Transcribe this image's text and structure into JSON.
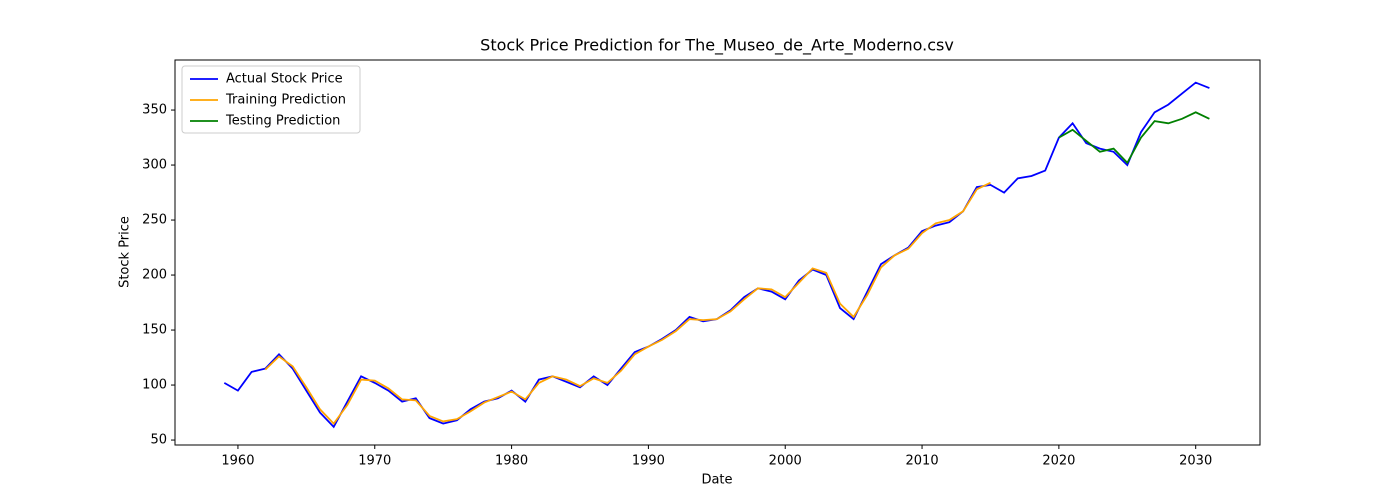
{
  "chart_data": {
    "type": "line",
    "title": "Stock Price Prediction for The_Museo_de_Arte_Moderno.csv",
    "x_label": "Date",
    "y_label": "Stock Price",
    "x": [
      1959,
      1960,
      1961,
      1962,
      1963,
      1964,
      1965,
      1966,
      1967,
      1968,
      1969,
      1970,
      1971,
      1972,
      1973,
      1974,
      1975,
      1976,
      1977,
      1978,
      1979,
      1980,
      1981,
      1982,
      1983,
      1984,
      1985,
      1986,
      1987,
      1988,
      1989,
      1990,
      1991,
      1992,
      1993,
      1994,
      1995,
      1996,
      1997,
      1998,
      1999,
      2000,
      2001,
      2002,
      2003,
      2004,
      2005,
      2006,
      2007,
      2008,
      2009,
      2010,
      2011,
      2012,
      2013,
      2014,
      2015,
      2016,
      2017,
      2018,
      2019,
      2020,
      2021,
      2022,
      2023,
      2024,
      2025,
      2026,
      2027,
      2028,
      2029,
      2030,
      2031
    ],
    "series": [
      {
        "name": "Actual Stock Price",
        "color": "#0000ff",
        "values": [
          102,
          95,
          112,
          115,
          128,
          115,
          95,
          75,
          62,
          85,
          108,
          102,
          95,
          85,
          88,
          70,
          65,
          68,
          78,
          85,
          88,
          95,
          85,
          105,
          108,
          103,
          98,
          108,
          100,
          115,
          130,
          135,
          142,
          150,
          162,
          158,
          160,
          168,
          180,
          188,
          185,
          178,
          195,
          205,
          200,
          170,
          160,
          185,
          210,
          218,
          225,
          240,
          245,
          248,
          258,
          280,
          282,
          275,
          288,
          290,
          295,
          325,
          338,
          320,
          315,
          312,
          300,
          330,
          348,
          355,
          365,
          375,
          370
        ]
      },
      {
        "name": "Training Prediction",
        "color": "#ffa500",
        "values": [
          null,
          null,
          null,
          114,
          126,
          117,
          98,
          78,
          65,
          82,
          105,
          104,
          97,
          87,
          86,
          72,
          67,
          69,
          76,
          84,
          89,
          94,
          87,
          102,
          108,
          105,
          99,
          106,
          102,
          113,
          128,
          135,
          141,
          149,
          160,
          159,
          160,
          167,
          178,
          188,
          187,
          180,
          193,
          206,
          202,
          174,
          162,
          182,
          207,
          218,
          224,
          238,
          247,
          250,
          258,
          278,
          284,
          null,
          null,
          null,
          null,
          null,
          null,
          null,
          null,
          null,
          null,
          null,
          null,
          null,
          null,
          null,
          null
        ]
      },
      {
        "name": "Testing Prediction",
        "color": "#008000",
        "values": [
          null,
          null,
          null,
          null,
          null,
          null,
          null,
          null,
          null,
          null,
          null,
          null,
          null,
          null,
          null,
          null,
          null,
          null,
          null,
          null,
          null,
          null,
          null,
          null,
          null,
          null,
          null,
          null,
          null,
          null,
          null,
          null,
          null,
          null,
          null,
          null,
          null,
          null,
          null,
          null,
          null,
          null,
          null,
          null,
          null,
          null,
          null,
          null,
          null,
          null,
          null,
          null,
          null,
          null,
          null,
          null,
          null,
          null,
          null,
          null,
          null,
          325,
          332,
          322,
          312,
          315,
          302,
          325,
          340,
          338,
          342,
          348,
          342
        ]
      }
    ],
    "xlim": [
      1955.4,
      2034.7
    ],
    "ylim": [
      45.5,
      395.5
    ],
    "xticks": [
      1960,
      1970,
      1980,
      1990,
      2000,
      2010,
      2020,
      2030
    ],
    "yticks": [
      50,
      100,
      150,
      200,
      250,
      300,
      350
    ],
    "legend": "upper left"
  }
}
